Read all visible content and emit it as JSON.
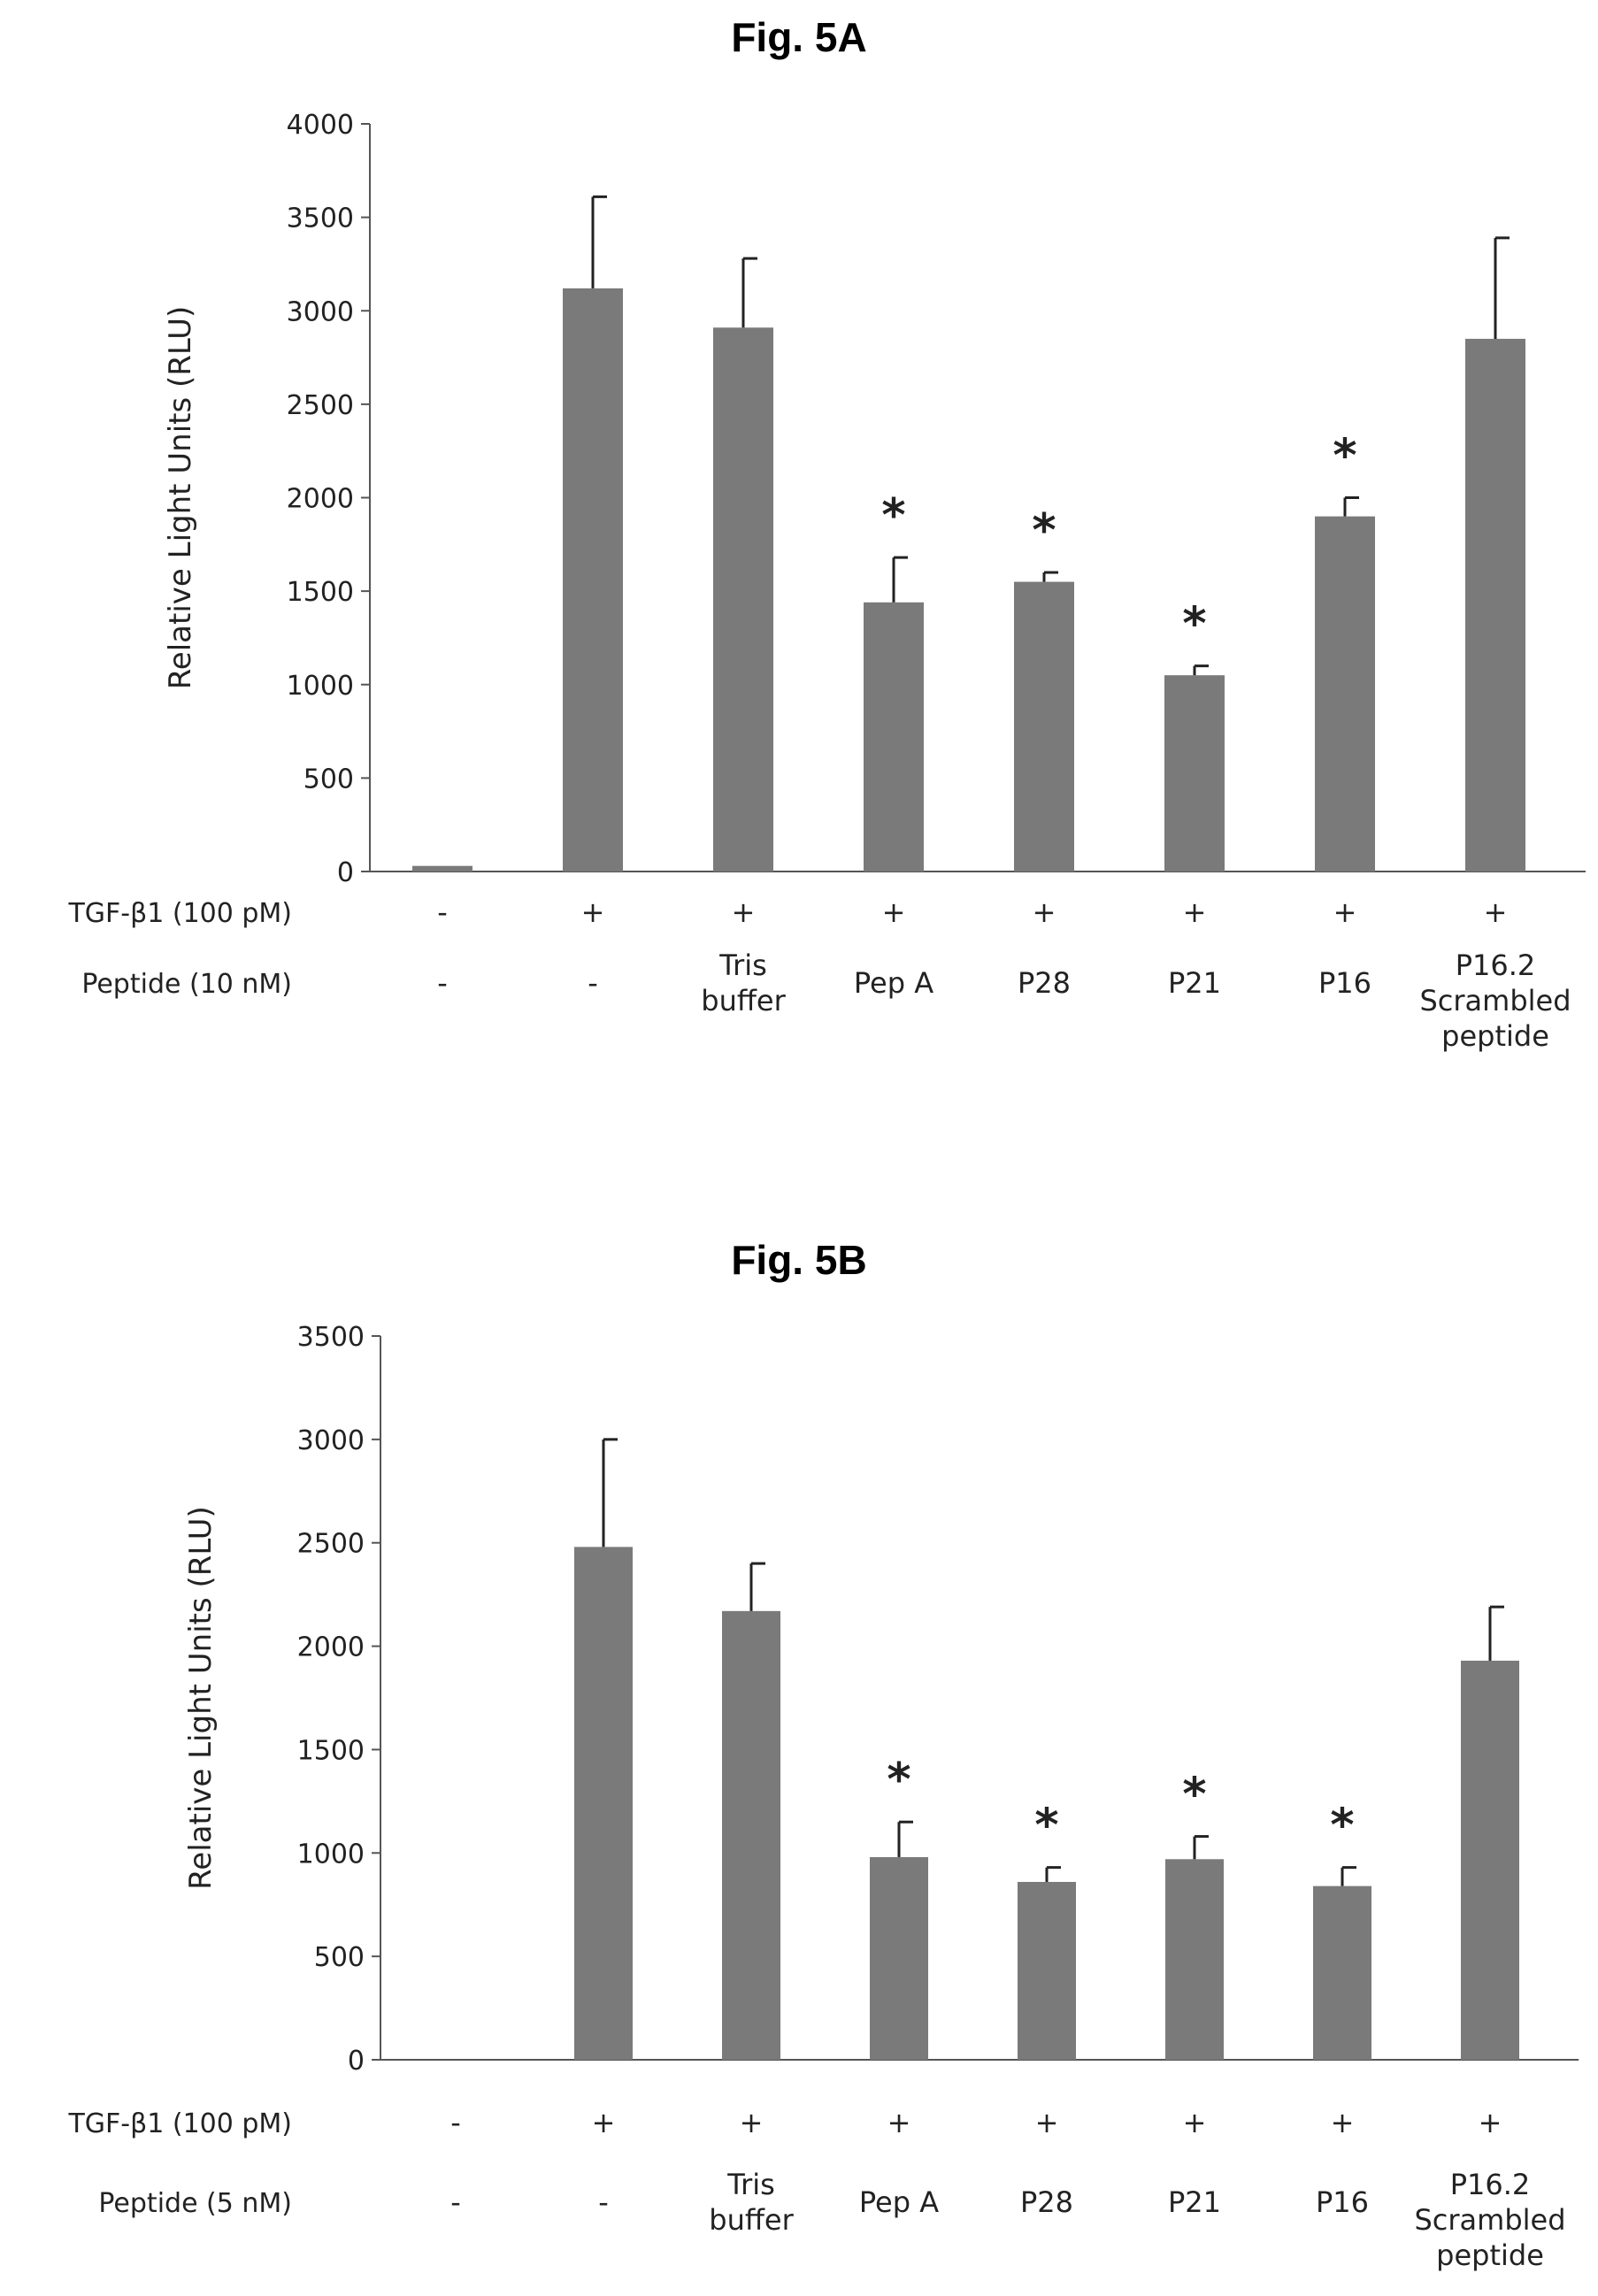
{
  "figures": [
    {
      "title": "Fig. 5A",
      "chart_data": {
        "type": "bar",
        "ylabel": "Relative Light Units (RLU)",
        "ylim": [
          0,
          4000
        ],
        "yticks": [
          0,
          500,
          1000,
          1500,
          2000,
          2500,
          3000,
          3500,
          4000
        ],
        "values": [
          30,
          3120,
          2910,
          1440,
          1550,
          1050,
          1900,
          2850
        ],
        "errors": [
          0,
          490,
          370,
          240,
          50,
          50,
          100,
          540
        ],
        "significant": [
          false,
          false,
          false,
          true,
          true,
          true,
          true,
          false
        ],
        "significance_marker": "*",
        "rows": [
          {
            "label": "TGF-β1 (100 pM)",
            "values": [
              "-",
              "+",
              "+",
              "+",
              "+",
              "+",
              "+",
              "+"
            ]
          },
          {
            "label": "Peptide (10 nM)",
            "values": [
              "-",
              "-",
              "Tris\nbuffer",
              "Pep A",
              "P28",
              "P21",
              "P16",
              "P16.2\nScrambled\npeptide"
            ]
          }
        ]
      }
    },
    {
      "title": "Fig. 5B",
      "chart_data": {
        "type": "bar",
        "ylabel": "Relative Light Units (RLU)",
        "ylim": [
          0,
          3500
        ],
        "yticks": [
          0,
          500,
          1000,
          1500,
          2000,
          2500,
          3000,
          3500
        ],
        "values": [
          0,
          2480,
          2170,
          980,
          860,
          970,
          840,
          1930
        ],
        "errors": [
          0,
          520,
          230,
          170,
          70,
          110,
          90,
          260
        ],
        "significant": [
          false,
          false,
          false,
          true,
          true,
          true,
          true,
          false
        ],
        "significance_marker": "*",
        "rows": [
          {
            "label": "TGF-β1 (100 pM)",
            "values": [
              "-",
              "+",
              "+",
              "+",
              "+",
              "+",
              "+",
              "+"
            ]
          },
          {
            "label": "Peptide (5 nM)",
            "values": [
              "-",
              "-",
              "Tris\nbuffer",
              "Pep A",
              "P28",
              "P21",
              "P16",
              "P16.2\nScrambled\npeptide"
            ]
          }
        ]
      }
    }
  ]
}
